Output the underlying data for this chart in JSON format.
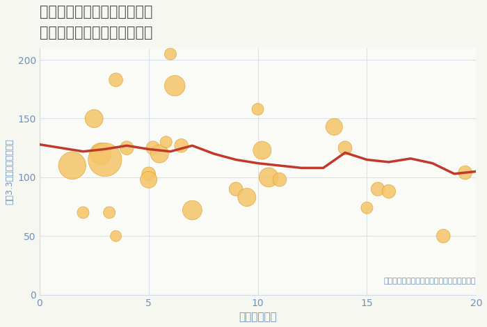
{
  "title": "愛知県名古屋市西区名塚町の\n駅距離別中古マンション価格",
  "xlabel": "駅距離（分）",
  "ylabel": "坪（3.3㎡）単価（万円）",
  "background_color": "#f7f7f2",
  "plot_bg_color": "#fafaf6",
  "scatter_color": "#f5c469",
  "scatter_edge_color": "#dba020",
  "line_color": "#c0392b",
  "annotation_color": "#7090b8",
  "annotation_text": "円の大きさは、取引のあった物件面積を示す",
  "title_color": "#555555",
  "axis_label_color": "#7090b8",
  "tick_color": "#7090b8",
  "grid_color": "#d0dcea",
  "xlim": [
    0,
    20
  ],
  "ylim": [
    0,
    210
  ],
  "xticks": [
    0,
    5,
    10,
    15,
    20
  ],
  "yticks": [
    0,
    50,
    100,
    150,
    200
  ],
  "scatter_x": [
    1.5,
    2.0,
    2.5,
    2.8,
    3.0,
    3.2,
    3.5,
    3.5,
    4.0,
    5.0,
    5.0,
    5.2,
    5.5,
    5.8,
    6.0,
    6.2,
    6.5,
    7.0,
    9.0,
    9.5,
    10.0,
    10.2,
    10.5,
    11.0,
    13.5,
    14.0,
    15.0,
    15.5,
    16.0,
    18.5,
    19.5
  ],
  "scatter_y": [
    110,
    70,
    150,
    120,
    115,
    70,
    50,
    183,
    125,
    103,
    98,
    125,
    120,
    130,
    205,
    178,
    127,
    72,
    90,
    83,
    158,
    123,
    100,
    98,
    143,
    125,
    74,
    90,
    88,
    50,
    104
  ],
  "scatter_size": [
    800,
    150,
    350,
    500,
    1200,
    150,
    130,
    200,
    200,
    200,
    300,
    200,
    350,
    150,
    150,
    450,
    200,
    400,
    200,
    350,
    150,
    350,
    400,
    200,
    300,
    200,
    150,
    200,
    200,
    200,
    200
  ],
  "trend_x": [
    0,
    1,
    2,
    3,
    4,
    5,
    6,
    7,
    8,
    9,
    10,
    11,
    12,
    13,
    14,
    15,
    16,
    17,
    18,
    19,
    20
  ],
  "trend_y": [
    128,
    125,
    122,
    124,
    127,
    124,
    122,
    127,
    120,
    115,
    112,
    110,
    108,
    108,
    121,
    115,
    113,
    116,
    112,
    103,
    105
  ]
}
